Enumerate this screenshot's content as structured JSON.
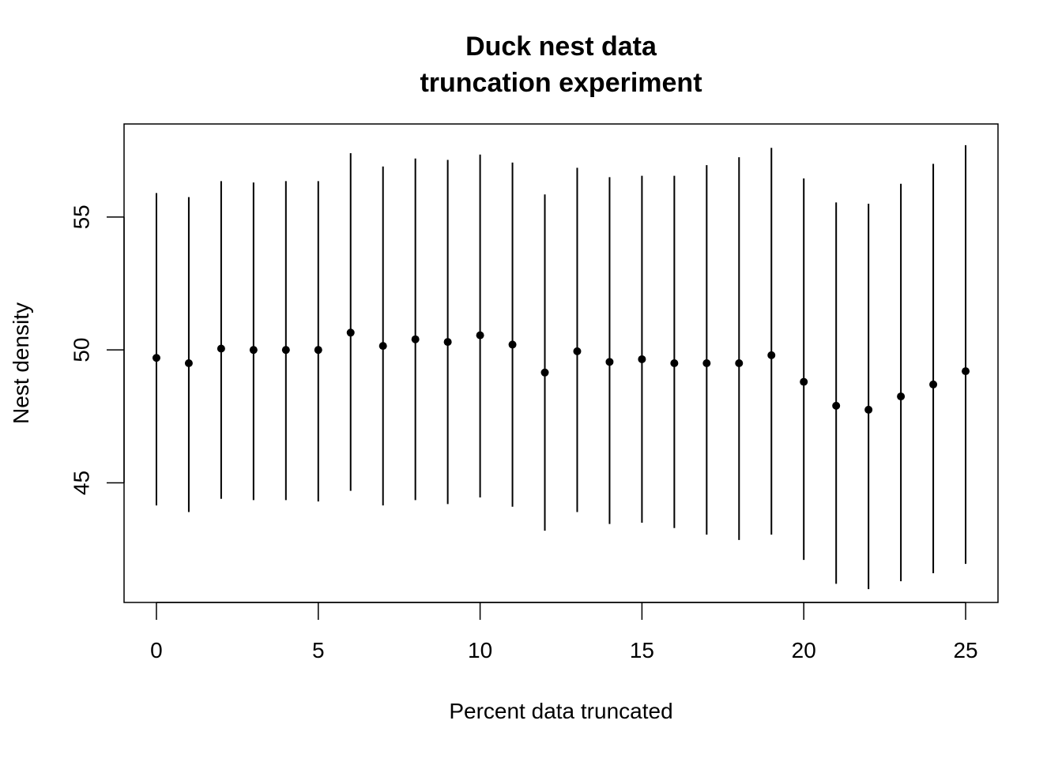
{
  "chart_data": {
    "type": "scatter",
    "title": "Duck nest data",
    "subtitle": "truncation experiment",
    "xlabel": "Percent data truncated",
    "ylabel": "Nest density",
    "xlim": [
      -1,
      26
    ],
    "ylim": [
      40.5,
      58.5
    ],
    "x_ticks": [
      0,
      5,
      10,
      15,
      20,
      25
    ],
    "y_ticks": [
      45,
      50,
      55
    ],
    "grid": false,
    "legend": "none",
    "marker_color": "#000000",
    "points": [
      {
        "x": 0,
        "y": 49.7,
        "lower": 44.15,
        "upper": 55.9
      },
      {
        "x": 1,
        "y": 49.5,
        "lower": 43.9,
        "upper": 55.75
      },
      {
        "x": 2,
        "y": 50.05,
        "lower": 44.4,
        "upper": 56.35
      },
      {
        "x": 3,
        "y": 50.0,
        "lower": 44.35,
        "upper": 56.3
      },
      {
        "x": 4,
        "y": 50.0,
        "lower": 44.35,
        "upper": 56.35
      },
      {
        "x": 5,
        "y": 50.0,
        "lower": 44.3,
        "upper": 56.35
      },
      {
        "x": 6,
        "y": 50.65,
        "lower": 44.7,
        "upper": 57.4
      },
      {
        "x": 7,
        "y": 50.15,
        "lower": 44.15,
        "upper": 56.9
      },
      {
        "x": 8,
        "y": 50.4,
        "lower": 44.35,
        "upper": 57.2
      },
      {
        "x": 9,
        "y": 50.3,
        "lower": 44.2,
        "upper": 57.15
      },
      {
        "x": 10,
        "y": 50.55,
        "lower": 44.45,
        "upper": 57.35
      },
      {
        "x": 11,
        "y": 50.2,
        "lower": 44.1,
        "upper": 57.05
      },
      {
        "x": 12,
        "y": 49.15,
        "lower": 43.2,
        "upper": 55.85
      },
      {
        "x": 13,
        "y": 49.95,
        "lower": 43.9,
        "upper": 56.85
      },
      {
        "x": 14,
        "y": 49.55,
        "lower": 43.45,
        "upper": 56.5
      },
      {
        "x": 15,
        "y": 49.65,
        "lower": 43.5,
        "upper": 56.55
      },
      {
        "x": 16,
        "y": 49.5,
        "lower": 43.3,
        "upper": 56.55
      },
      {
        "x": 17,
        "y": 49.5,
        "lower": 43.05,
        "upper": 56.95
      },
      {
        "x": 18,
        "y": 49.5,
        "lower": 42.85,
        "upper": 57.25
      },
      {
        "x": 19,
        "y": 49.8,
        "lower": 43.05,
        "upper": 57.6
      },
      {
        "x": 20,
        "y": 48.8,
        "lower": 42.1,
        "upper": 56.45
      },
      {
        "x": 21,
        "y": 47.9,
        "lower": 41.2,
        "upper": 55.55
      },
      {
        "x": 22,
        "y": 47.75,
        "lower": 41.0,
        "upper": 55.5
      },
      {
        "x": 23,
        "y": 48.25,
        "lower": 41.3,
        "upper": 56.25
      },
      {
        "x": 24,
        "y": 48.7,
        "lower": 41.6,
        "upper": 57.0
      },
      {
        "x": 25,
        "y": 49.2,
        "lower": 41.95,
        "upper": 57.7
      }
    ]
  }
}
